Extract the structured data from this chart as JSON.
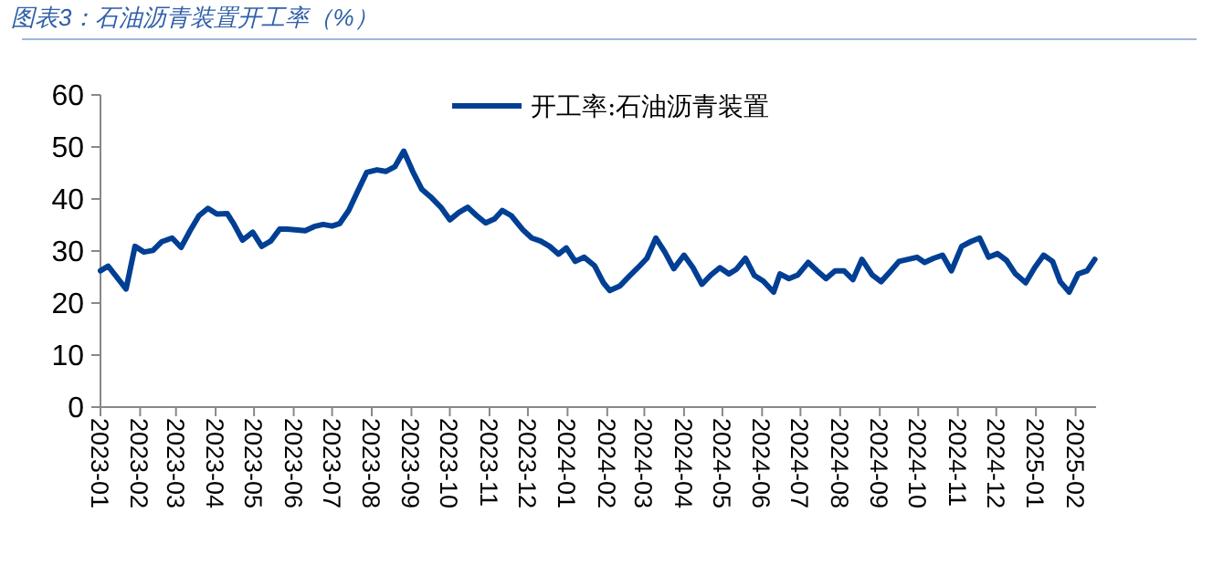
{
  "chart_data": {
    "type": "line",
    "title": "图表3：石油沥青装置开工率（%）",
    "x": [
      "2023-01-01",
      "2023-01-07",
      "2023-01-21",
      "2023-01-28",
      "2023-02-04",
      "2023-02-11",
      "2023-02-18",
      "2023-02-26",
      "2023-03-05",
      "2023-03-12",
      "2023-03-19",
      "2023-03-26",
      "2023-04-02",
      "2023-04-10",
      "2023-04-15",
      "2023-04-22",
      "2023-04-30",
      "2023-05-07",
      "2023-05-14",
      "2023-05-21",
      "2023-05-27",
      "2023-06-10",
      "2023-06-17",
      "2023-06-24",
      "2023-07-01",
      "2023-07-07",
      "2023-07-14",
      "2023-07-21",
      "2023-07-28",
      "2023-08-05",
      "2023-08-12",
      "2023-08-19",
      "2023-08-26",
      "2023-09-02",
      "2023-09-09",
      "2023-09-16",
      "2023-09-24",
      "2023-10-01",
      "2023-10-08",
      "2023-10-15",
      "2023-10-22",
      "2023-10-29",
      "2023-11-05",
      "2023-11-11",
      "2023-11-18",
      "2023-11-27",
      "2023-12-04",
      "2023-12-11",
      "2023-12-18",
      "2023-12-25",
      "2023-12-31",
      "2024-01-07",
      "2024-01-14",
      "2024-01-22",
      "2024-01-29",
      "2024-02-03",
      "2024-02-11",
      "2024-02-18",
      "2024-02-25",
      "2024-03-03",
      "2024-03-10",
      "2024-03-17",
      "2024-03-24",
      "2024-04-01",
      "2024-04-08",
      "2024-04-15",
      "2024-04-22",
      "2024-04-29",
      "2024-05-06",
      "2024-05-12",
      "2024-05-19",
      "2024-05-26",
      "2024-06-02",
      "2024-06-10",
      "2024-06-15",
      "2024-06-22",
      "2024-06-29",
      "2024-07-07",
      "2024-07-14",
      "2024-07-21",
      "2024-07-28",
      "2024-08-04",
      "2024-08-11",
      "2024-08-18",
      "2024-08-26",
      "2024-09-02",
      "2024-09-09",
      "2024-09-16",
      "2024-09-23",
      "2024-09-30",
      "2024-10-06",
      "2024-10-13",
      "2024-10-20",
      "2024-10-27",
      "2024-11-04",
      "2024-11-11",
      "2024-11-18",
      "2024-11-25",
      "2024-12-02",
      "2024-12-09",
      "2024-12-16",
      "2024-12-24",
      "2024-12-31",
      "2025-01-07",
      "2025-01-14",
      "2025-01-20",
      "2025-01-27",
      "2025-02-03",
      "2025-02-10",
      "2025-02-16"
    ],
    "series": [
      {
        "name": "开工率:石油沥青装置",
        "color": "#003f94",
        "values": [
          26.2,
          27.1,
          22.7,
          30.9,
          29.8,
          30.1,
          31.8,
          32.5,
          30.7,
          33.9,
          36.8,
          38.2,
          37.1,
          37.2,
          35.3,
          32.1,
          33.6,
          30.9,
          31.9,
          34.2,
          34.2,
          33.9,
          34.7,
          35.1,
          34.8,
          35.3,
          37.8,
          41.5,
          45.1,
          45.6,
          45.3,
          46.2,
          49.2,
          45.3,
          41.9,
          40.4,
          38.4,
          36.0,
          37.4,
          38.4,
          36.8,
          35.4,
          36.2,
          37.8,
          36.8,
          34.1,
          32.5,
          31.9,
          30.9,
          29.4,
          30.6,
          28.0,
          28.8,
          27.2,
          23.9,
          22.4,
          23.3,
          25.1,
          26.8,
          28.6,
          32.5,
          29.8,
          26.6,
          29.2,
          26.8,
          23.6,
          25.4,
          26.8,
          25.6,
          26.5,
          28.6,
          25.3,
          24.2,
          22.1,
          25.6,
          24.7,
          25.4,
          27.8,
          26.2,
          24.7,
          26.2,
          26.2,
          24.5,
          28.4,
          25.4,
          24.1,
          26.0,
          28.0,
          28.4,
          28.8,
          27.8,
          28.6,
          29.2,
          26.2,
          30.9,
          31.8,
          32.5,
          28.8,
          29.5,
          28.2,
          25.6,
          23.9,
          26.8,
          29.2,
          28.0,
          24.1,
          22.1,
          25.6,
          26.2,
          28.4
        ]
      }
    ],
    "xlim": [
      "2023-01-01",
      "2025-02-17"
    ],
    "xticks": [
      "2023-01",
      "2023-02",
      "2023-03",
      "2023-04",
      "2023-05",
      "2023-06",
      "2023-07",
      "2023-08",
      "2023-09",
      "2023-10",
      "2023-11",
      "2023-12",
      "2024-01",
      "2024-02",
      "2024-03",
      "2024-04",
      "2024-05",
      "2024-06",
      "2024-07",
      "2024-08",
      "2024-09",
      "2024-10",
      "2024-11",
      "2024-12",
      "2025-01",
      "2025-02"
    ],
    "ylim": [
      0,
      60
    ],
    "yticks": [
      0,
      10,
      20,
      30,
      40,
      50,
      60
    ],
    "grid": false,
    "legend": "top",
    "marker": "none",
    "line_style": "solid"
  }
}
